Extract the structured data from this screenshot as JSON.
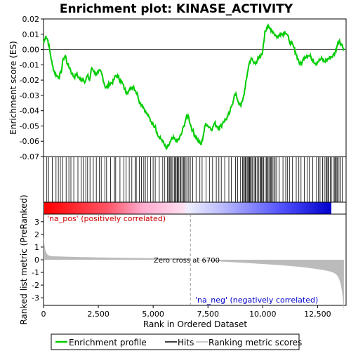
{
  "chart_data": {
    "type": "line",
    "title": "Enrichment plot: KINASE_ACTIVITY",
    "xlabel": "Rank in Ordered Dataset",
    "ylabel_top": "Enrichment score (ES)",
    "ylabel_bottom": "Ranked list metric (PreRanked)",
    "x_ticks": [
      "0",
      "2,500",
      "5,000",
      "7,500",
      "10,000",
      "12,500"
    ],
    "x_tick_values": [
      0,
      2500,
      5000,
      7500,
      10000,
      12500
    ],
    "xlim": [
      0,
      13800
    ],
    "es_yticks": [
      "0.02",
      "0.01",
      "0.00",
      "-0.01",
      "-0.02",
      "-0.03",
      "-0.04",
      "-0.05",
      "-0.06",
      "-0.07"
    ],
    "es_ytick_values": [
      0.02,
      0.01,
      0.0,
      -0.01,
      -0.02,
      -0.03,
      -0.04,
      -0.05,
      -0.06,
      -0.07
    ],
    "es_ylim": [
      -0.07,
      0.02
    ],
    "metric_yticks": [
      "3",
      "2",
      "1",
      "0",
      "-1",
      "-2",
      "-3"
    ],
    "metric_ytick_values": [
      3,
      2,
      1,
      0,
      -1,
      -2,
      -3
    ],
    "metric_ylim": [
      -3.6,
      3.6
    ],
    "zero_cross_label": "Zero cross at 6700",
    "zero_cross_rank": 6700,
    "pos_label": "'na_pos' (positively correlated)",
    "neg_label": "'na_neg' (negatively correlated)",
    "series": [
      {
        "name": "Enrichment profile",
        "color": "#00cc00",
        "x": [
          0,
          100,
          200,
          300,
          400,
          500,
          600,
          700,
          800,
          900,
          1000,
          1100,
          1200,
          1300,
          1400,
          1500,
          1600,
          1700,
          1800,
          1900,
          2000,
          2100,
          2200,
          2300,
          2400,
          2500,
          2600,
          2700,
          2800,
          2900,
          3000,
          3100,
          3200,
          3300,
          3400,
          3500,
          3600,
          3700,
          3800,
          3900,
          4000,
          4100,
          4200,
          4300,
          4400,
          4500,
          4600,
          4700,
          4800,
          4900,
          5000,
          5100,
          5200,
          5300,
          5400,
          5500,
          5600,
          5700,
          5800,
          5900,
          6000,
          6100,
          6200,
          6300,
          6400,
          6500,
          6600,
          6700,
          6800,
          6900,
          7000,
          7100,
          7200,
          7300,
          7400,
          7500,
          7600,
          7700,
          7800,
          7900,
          8000,
          8100,
          8200,
          8300,
          8400,
          8500,
          8600,
          8700,
          8800,
          8900,
          9000,
          9100,
          9200,
          9300,
          9400,
          9500,
          9600,
          9700,
          9800,
          9900,
          10000,
          10100,
          10200,
          10300,
          10400,
          10500,
          10600,
          10700,
          10800,
          10900,
          11000,
          11100,
          11200,
          11300,
          11400,
          11500,
          11600,
          11700,
          11800,
          11900,
          12000,
          12100,
          12200,
          12300,
          12400,
          12500,
          12600,
          12700,
          12800,
          12900,
          13000,
          13100,
          13200,
          13300,
          13400,
          13500,
          13600,
          13700
        ],
        "values": [
          0.004,
          0.009,
          0.006,
          -0.002,
          -0.01,
          -0.015,
          -0.017,
          -0.018,
          -0.015,
          -0.006,
          -0.004,
          -0.01,
          -0.012,
          -0.016,
          -0.018,
          -0.016,
          -0.018,
          -0.02,
          -0.019,
          -0.021,
          -0.017,
          -0.02,
          -0.012,
          -0.014,
          -0.016,
          -0.015,
          -0.014,
          -0.018,
          -0.024,
          -0.025,
          -0.022,
          -0.022,
          -0.02,
          -0.017,
          -0.018,
          -0.02,
          -0.022,
          -0.026,
          -0.028,
          -0.027,
          -0.025,
          -0.024,
          -0.027,
          -0.03,
          -0.035,
          -0.036,
          -0.039,
          -0.042,
          -0.044,
          -0.047,
          -0.049,
          -0.05,
          -0.056,
          -0.058,
          -0.059,
          -0.062,
          -0.065,
          -0.063,
          -0.06,
          -0.058,
          -0.059,
          -0.06,
          -0.058,
          -0.055,
          -0.05,
          -0.045,
          -0.043,
          -0.049,
          -0.053,
          -0.056,
          -0.058,
          -0.061,
          -0.062,
          -0.055,
          -0.048,
          -0.05,
          -0.051,
          -0.052,
          -0.048,
          -0.05,
          -0.051,
          -0.05,
          -0.047,
          -0.046,
          -0.044,
          -0.041,
          -0.036,
          -0.03,
          -0.03,
          -0.035,
          -0.037,
          -0.032,
          -0.025,
          -0.015,
          -0.008,
          -0.006,
          -0.009,
          -0.008,
          -0.006,
          -0.005,
          -0.001,
          0.012,
          0.015,
          0.014,
          0.013,
          0.011,
          0.009,
          0.008,
          0.011,
          0.01,
          0.012,
          0.01,
          0.006,
          0.004,
          0.002,
          -0.002,
          -0.006,
          -0.01,
          -0.008,
          -0.005,
          -0.004,
          -0.004,
          -0.005,
          -0.007,
          -0.009,
          -0.008,
          -0.007,
          -0.006,
          -0.008,
          -0.007,
          -0.006,
          -0.005,
          -0.004,
          -0.002,
          0.003,
          0.006,
          0.003,
          0.001
        ]
      }
    ],
    "hits_color": "#000000",
    "metric_color": "#bbbbbb",
    "heatbar_colors": [
      "#ff0000",
      "#ffaacc",
      "#ddddff",
      "#0000ff"
    ],
    "legend": [
      {
        "label": "Enrichment profile",
        "color": "#00cc00"
      },
      {
        "label": "Hits",
        "color": "#000000"
      },
      {
        "label": "Ranking metric scores",
        "color": "#bbbbbb"
      }
    ]
  }
}
